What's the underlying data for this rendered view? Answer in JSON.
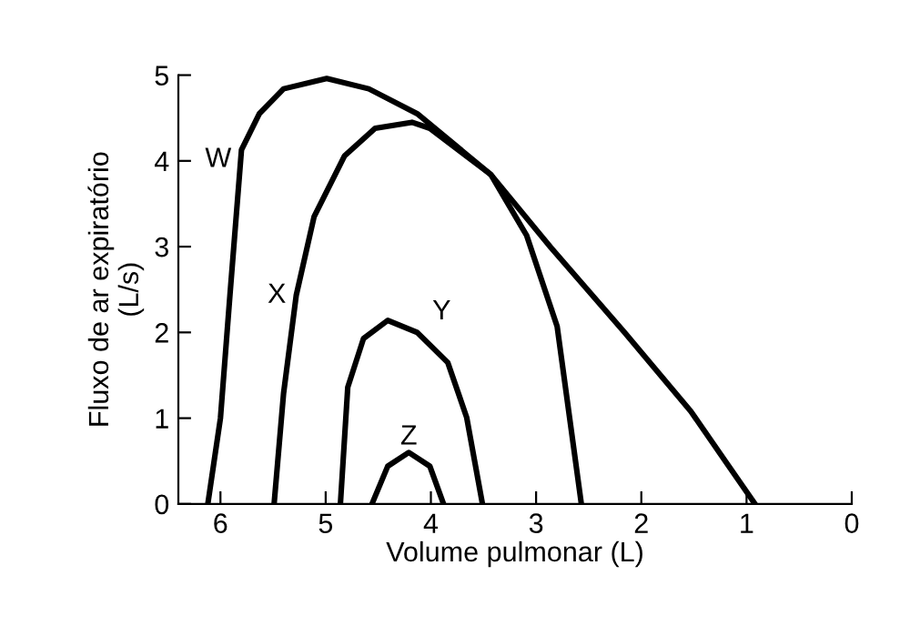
{
  "chart_data": {
    "type": "line",
    "xlabel": "Volume pulmonar (L)",
    "ylabel": "Fluxo de ar expiratório\n(L/s)",
    "xlim": [
      6.4,
      0
    ],
    "xticks": [
      6,
      5,
      4,
      3,
      2,
      1,
      0
    ],
    "ylim": [
      0,
      5
    ],
    "yticks": [
      0,
      1,
      2,
      3,
      4,
      5
    ],
    "grid": false,
    "legend": false,
    "marker": "none",
    "line_style": "solid",
    "series": [
      {
        "name": "W",
        "color": "#000000",
        "x": [
          6.12,
          6.0,
          5.91,
          5.8,
          5.63,
          5.4,
          4.99,
          4.59,
          4.13,
          3.43,
          2.86,
          2.16,
          1.53,
          0.92
        ],
        "values": [
          0,
          1.0,
          2.43,
          4.13,
          4.55,
          4.84,
          4.96,
          4.84,
          4.55,
          3.84,
          2.99,
          2.0,
          1.08,
          0
        ]
      },
      {
        "name": "X",
        "color": "#000000",
        "x": [
          5.49,
          5.4,
          5.28,
          5.11,
          4.82,
          4.53,
          4.18,
          4.01,
          3.43,
          3.09,
          2.8,
          2.57
        ],
        "values": [
          0,
          1.29,
          2.43,
          3.35,
          4.06,
          4.38,
          4.45,
          4.38,
          3.84,
          3.13,
          2.07,
          0
        ]
      },
      {
        "name": "Y",
        "color": "#000000",
        "x": [
          4.86,
          4.79,
          4.64,
          4.41,
          4.13,
          3.84,
          3.66,
          3.51
        ],
        "values": [
          0,
          1.36,
          1.93,
          2.14,
          2.0,
          1.65,
          1.01,
          0
        ]
      },
      {
        "name": "Z",
        "color": "#000000",
        "x": [
          4.56,
          4.41,
          4.21,
          4.01,
          3.88
        ],
        "values": [
          0,
          0.44,
          0.6,
          0.44,
          0
        ]
      }
    ]
  }
}
